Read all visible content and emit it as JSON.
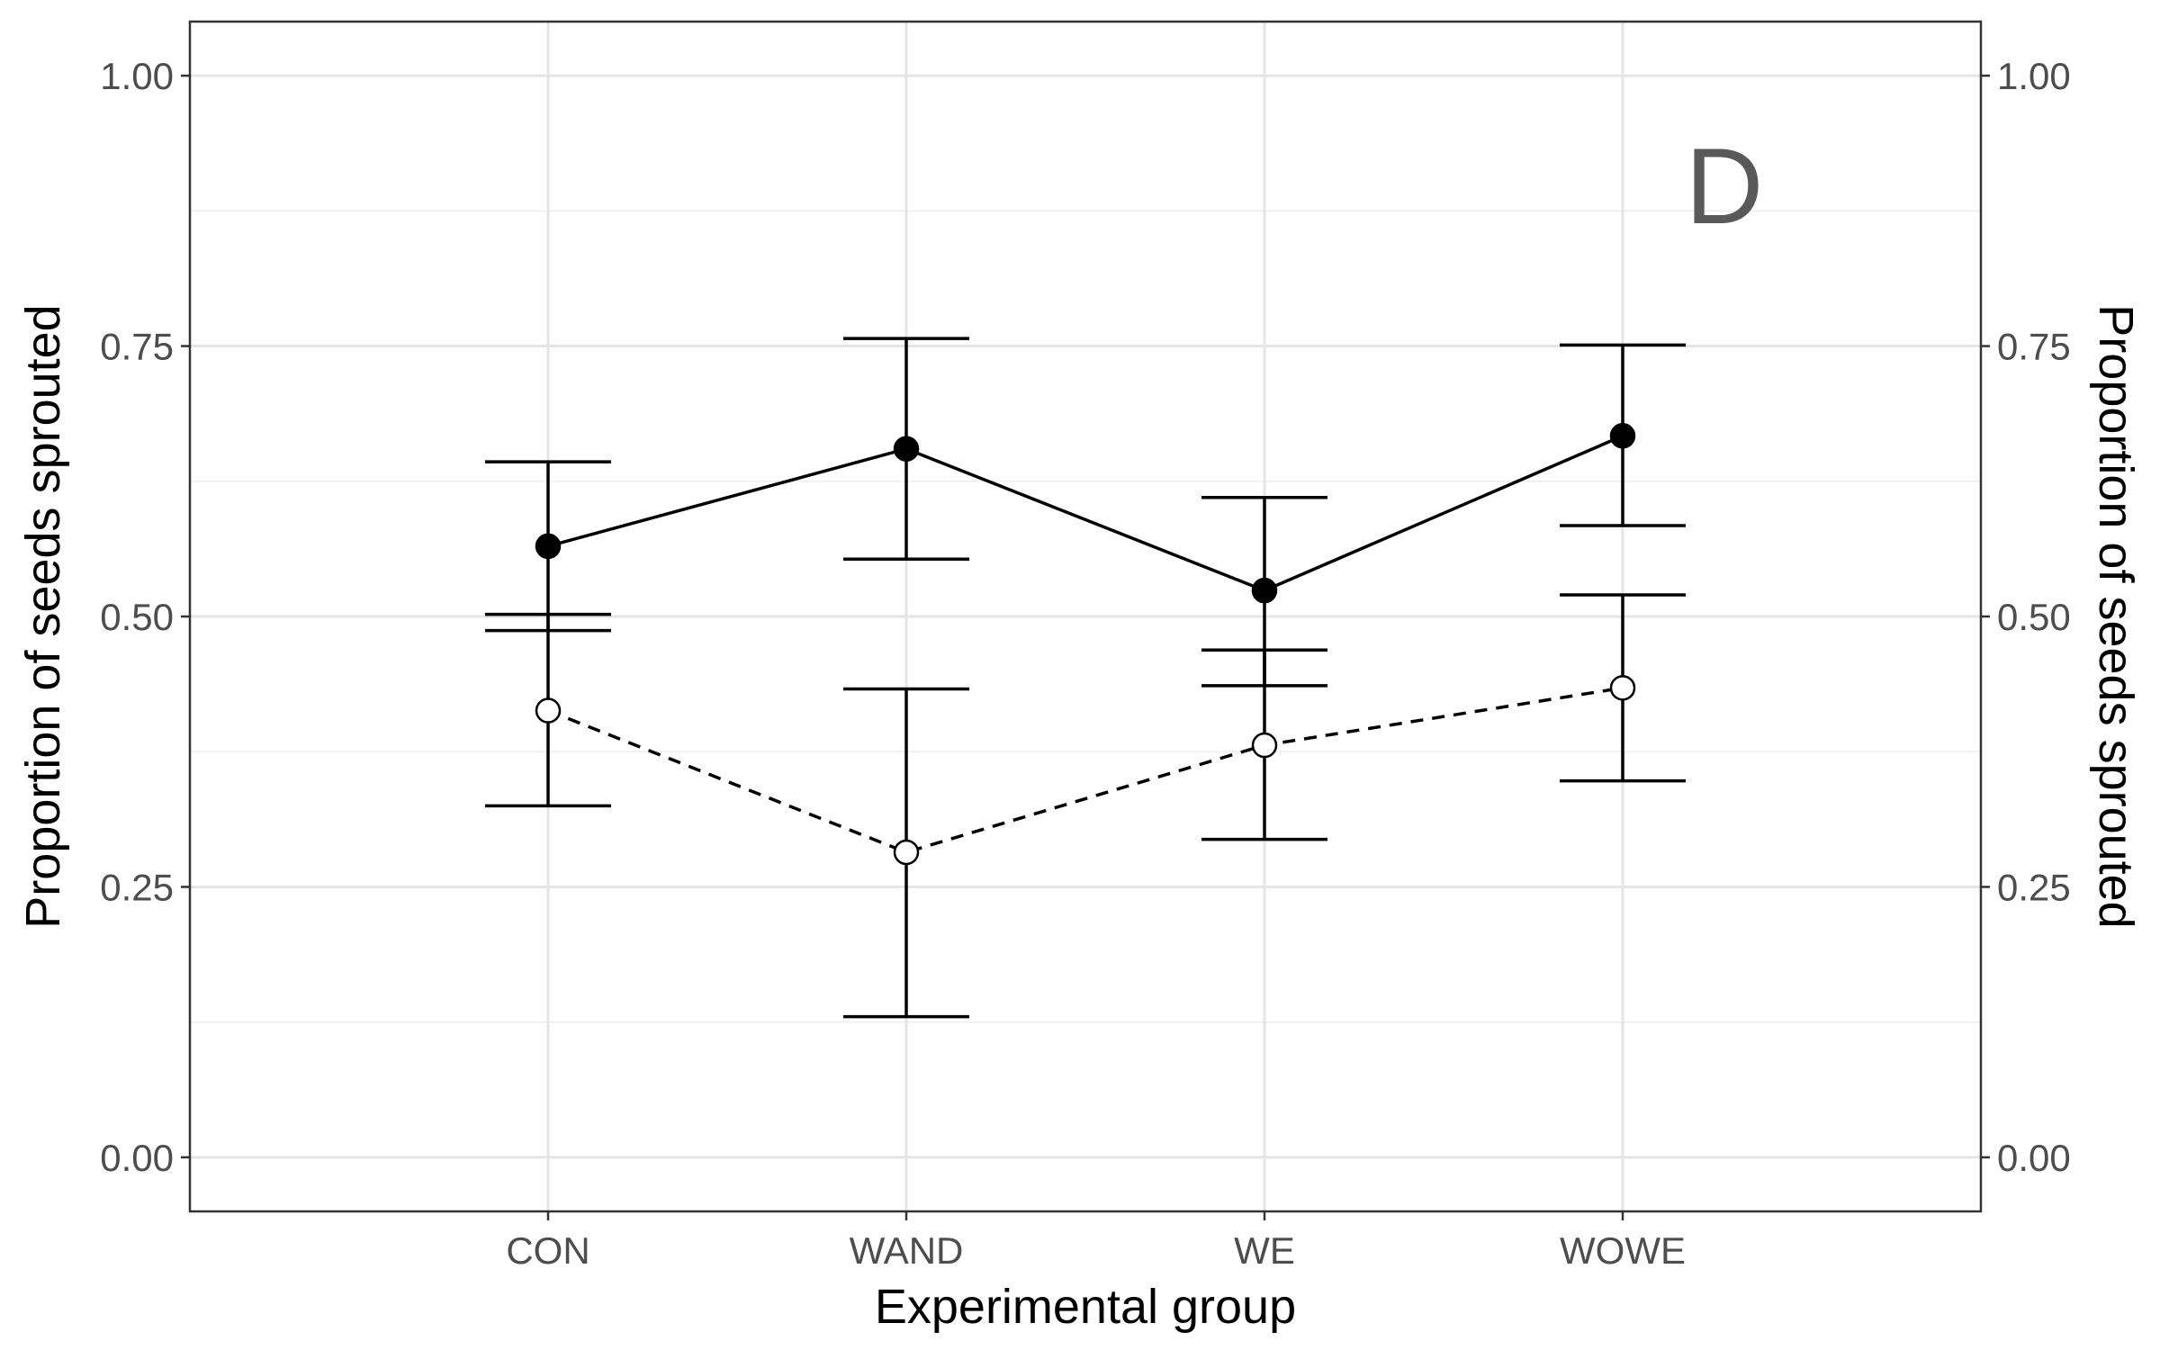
{
  "chart_data": {
    "type": "line",
    "panel_label": "D",
    "xlabel": "Experimental group",
    "ylabel_left": "Proportion of seeds sprouted",
    "ylabel_right": "Proportion of seeds sprouted",
    "categories": [
      "CON",
      "WAND",
      "WE",
      "WOWE"
    ],
    "ylim": [
      -0.05,
      1.05
    ],
    "yticks": [
      0.0,
      0.25,
      0.5,
      0.75,
      1.0
    ],
    "ytick_labels": [
      "0.00",
      "0.25",
      "0.50",
      "0.75",
      "1.00"
    ],
    "grid": true,
    "series": [
      {
        "marker": "filled-circle",
        "line_style": "solid",
        "color": "#000000",
        "values": [
          0.565,
          0.655,
          0.524,
          0.667
        ],
        "lower": [
          0.487,
          0.553,
          0.436,
          0.584
        ],
        "upper": [
          0.643,
          0.757,
          0.61,
          0.751
        ]
      },
      {
        "marker": "open-circle",
        "line_style": "dashed",
        "color": "#000000",
        "values": [
          0.413,
          0.282,
          0.381,
          0.434
        ],
        "lower": [
          0.325,
          0.13,
          0.294,
          0.348
        ],
        "upper": [
          0.502,
          0.433,
          0.469,
          0.52
        ]
      }
    ]
  }
}
